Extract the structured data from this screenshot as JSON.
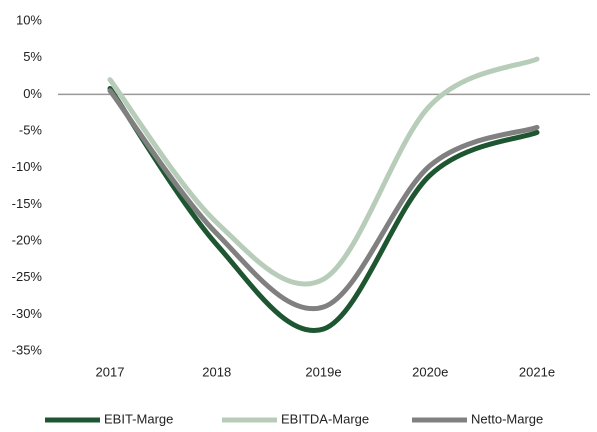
{
  "chart_data": {
    "type": "line",
    "categories": [
      "2017",
      "2018",
      "2019e",
      "2020e",
      "2021e"
    ],
    "series": [
      {
        "name": "EBIT-Marge",
        "color": "#1e5631",
        "values": [
          0.8,
          -20.5,
          -32,
          -11,
          -5.2
        ]
      },
      {
        "name": "EBITDA-Marge",
        "color": "#b8cdb9",
        "values": [
          2,
          -17.5,
          -25.2,
          -1.5,
          4.8
        ]
      },
      {
        "name": "Netto-Marge",
        "color": "#808080",
        "values": [
          0.5,
          -19,
          -29,
          -9.7,
          -4.5
        ]
      }
    ],
    "ylim": [
      -35,
      10
    ],
    "yticks": [
      {
        "value": -35,
        "label": "-35%"
      },
      {
        "value": -30,
        "label": "-30%"
      },
      {
        "value": -25,
        "label": "-25%"
      },
      {
        "value": -20,
        "label": "-20%"
      },
      {
        "value": -15,
        "label": "-15%"
      },
      {
        "value": -10,
        "label": "-10%"
      },
      {
        "value": -5,
        "label": "-5%"
      },
      {
        "value": 0,
        "label": "0%"
      },
      {
        "value": 5,
        "label": "5%"
      },
      {
        "value": 10,
        "label": "10%"
      }
    ],
    "legend": "bottom"
  }
}
